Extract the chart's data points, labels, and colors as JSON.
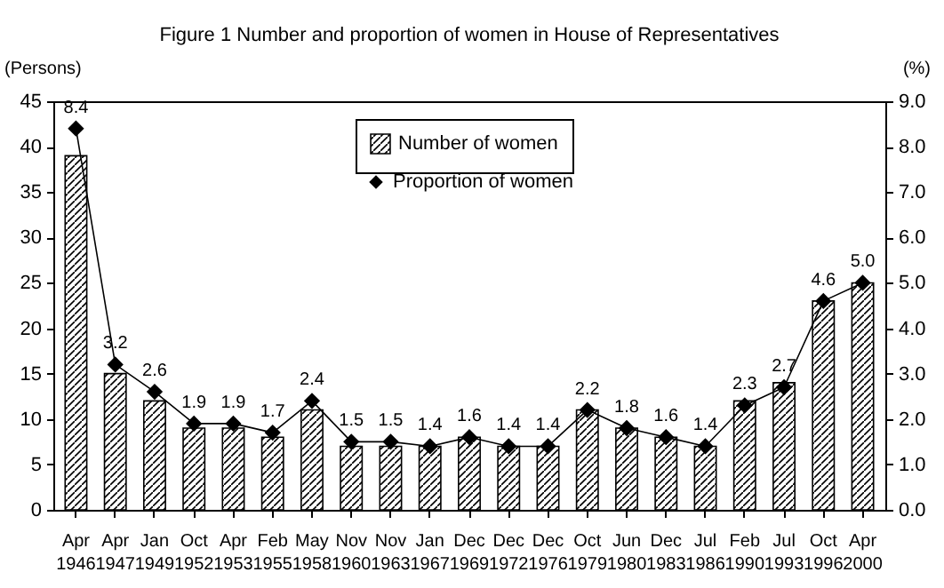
{
  "chart_data": {
    "type": "bar",
    "title": "Figure 1  Number and proportion of women in House of Representatives",
    "ylabel": "(Persons)",
    "y2label": "(%)",
    "categories": [
      "Apr 1946",
      "Apr 1947",
      "Jan 1949",
      "Oct 1952",
      "Apr 1953",
      "Feb 1955",
      "May 1958",
      "Nov 1960",
      "Nov 1963",
      "Jan 1967",
      "Dec 1969",
      "Dec 1972",
      "Dec 1976",
      "Oct 1979",
      "Jun 1980",
      "Dec 1983",
      "Jul 1986",
      "Feb 1990",
      "Jul 1993",
      "Oct 1996",
      "Apr 2000"
    ],
    "series": [
      {
        "name": "Number of women",
        "color": "#000000",
        "values": [
          39,
          15,
          12,
          9,
          9,
          8,
          11,
          7,
          7,
          7,
          8,
          7,
          7,
          11,
          9,
          8,
          7,
          12,
          14,
          23,
          25
        ]
      },
      {
        "name": "Proportion of women",
        "type": "line",
        "axis": "y2",
        "color": "#000000",
        "marker": "diamond",
        "values": [
          8.4,
          3.2,
          2.6,
          1.9,
          1.9,
          1.7,
          2.4,
          1.5,
          1.5,
          1.4,
          1.6,
          1.4,
          1.4,
          2.2,
          1.8,
          1.6,
          1.4,
          2.3,
          2.7,
          4.6,
          5.0
        ],
        "value_labels": [
          "8.4",
          "3.2",
          "2.6",
          "1.9",
          "1.9",
          "1.7",
          "2.4",
          "1.5",
          "1.5",
          "1.4",
          "1.6",
          "1.4",
          "1.4",
          "2.2",
          "1.8",
          "1.6",
          "1.4",
          "2.3",
          "2.7",
          "4.6",
          "5.0"
        ]
      }
    ],
    "ylim": [
      0,
      45
    ],
    "yticks": [
      0,
      5,
      10,
      15,
      20,
      25,
      30,
      35,
      40,
      45
    ],
    "y2lim": [
      0,
      9
    ],
    "y2ticks": [
      {
        "value": 0,
        "label": "0.0"
      },
      {
        "value": 1,
        "label": "1.0"
      },
      {
        "value": 2,
        "label": "2.0"
      },
      {
        "value": 3,
        "label": "3.0"
      },
      {
        "value": 4,
        "label": "4.0"
      },
      {
        "value": 5,
        "label": "5.0"
      },
      {
        "value": 6,
        "label": "6.0"
      },
      {
        "value": 7,
        "label": "7.0"
      },
      {
        "value": 8,
        "label": "8.0"
      },
      {
        "value": 9,
        "label": "9.0"
      }
    ],
    "grid": false,
    "legend": "top"
  }
}
